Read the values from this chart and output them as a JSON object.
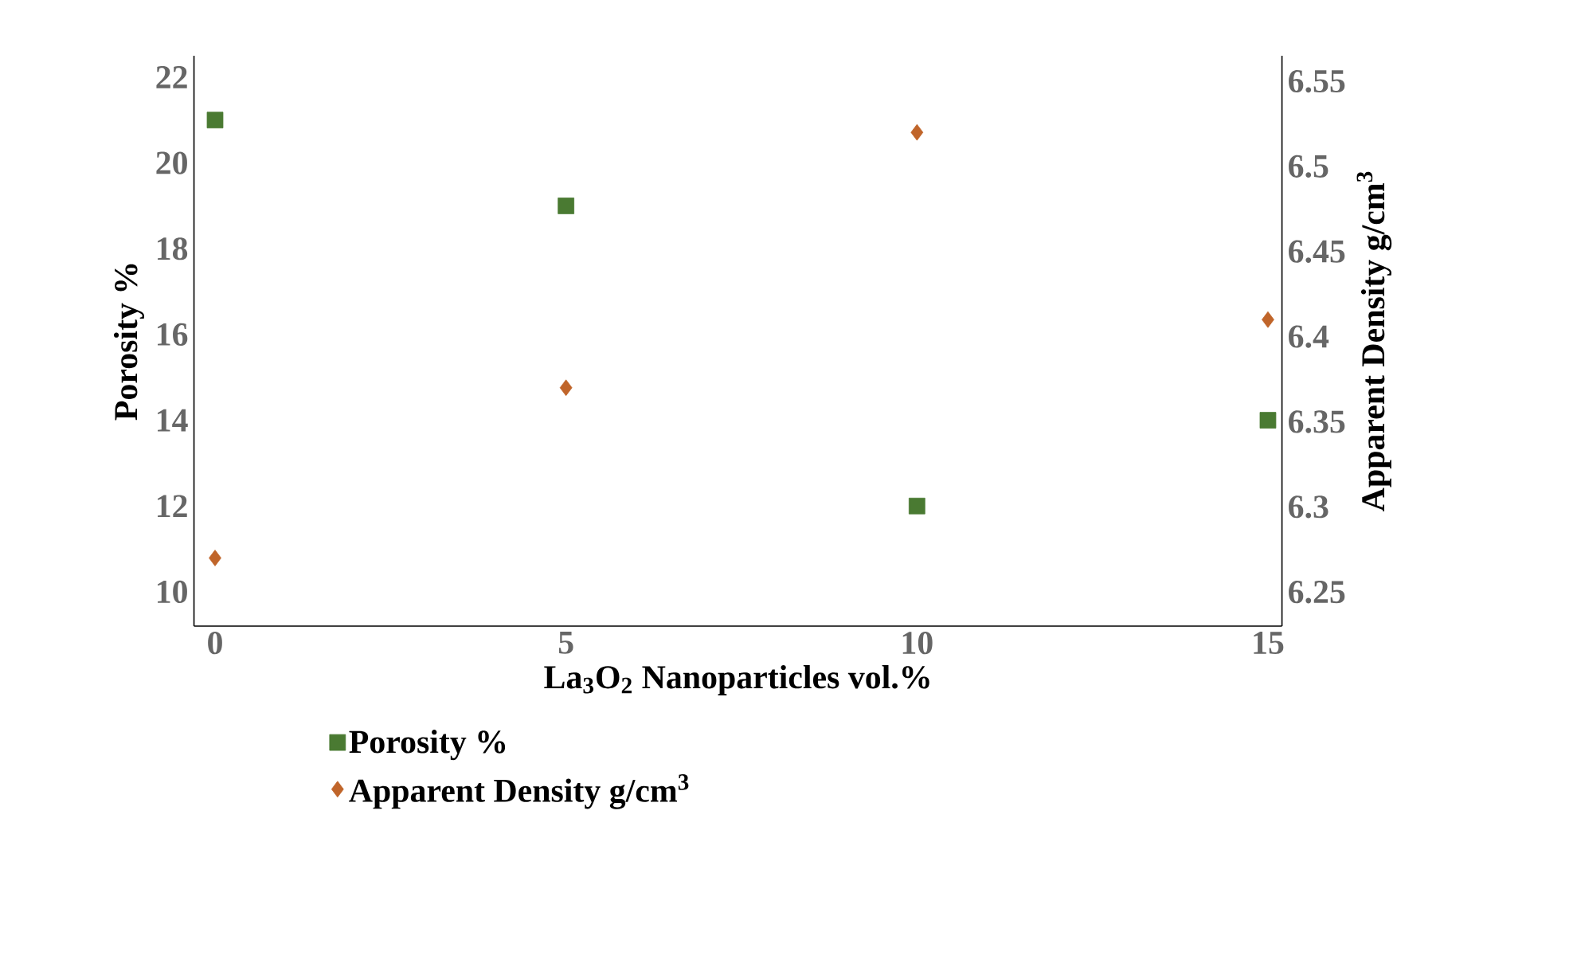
{
  "chart_data": {
    "type": "scatter",
    "xlabel": "La$_{3}$O$_{2}$ Nanoparticles vol.%",
    "ylabel": "Porosity %",
    "y2label": "Apparent Density g/cm$^{3}$",
    "x": [
      0,
      5,
      10,
      15
    ],
    "series": [
      {
        "name": "Porosity %",
        "color": "#4a7a32",
        "marker": "square",
        "values": [
          21,
          19,
          12,
          14
        ]
      },
      {
        "name": "Apparent Density g/cm$^{3}$",
        "color": "#c0652a",
        "marker": "diamond",
        "axis": "y2",
        "values": [
          6.27,
          6.37,
          6.52,
          6.41
        ]
      }
    ],
    "xlim": [
      -0.3,
      15.2
    ],
    "xticks": [
      0,
      5,
      10,
      15
    ],
    "ylim": [
      9.2,
      22.5
    ],
    "yticks": [
      10,
      12,
      14,
      16,
      18,
      20,
      22
    ],
    "y2lim": [
      6.23,
      6.565
    ],
    "y2ticks": [
      6.25,
      6.3,
      6.35,
      6.4,
      6.45,
      6.5,
      6.55
    ],
    "legend": "bottom"
  }
}
